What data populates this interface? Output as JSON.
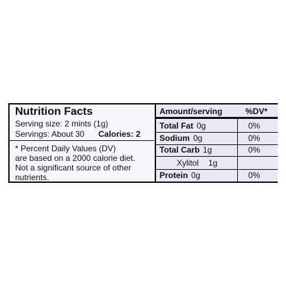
{
  "label": {
    "title": "Nutrition Facts",
    "serving_size": "Serving size: 2 mints (1g)",
    "servings": "Servings: About 30",
    "calories": "Calories: 2",
    "footnote": [
      "* Percent Daily Values (DV)",
      "are based on a 2000 calorie diet.",
      "Not a significant source of other",
      "nutrients."
    ],
    "table": {
      "header": [
        "Amount/serving",
        "%DV*"
      ],
      "rows": [
        {
          "nutrient": "Total Fat",
          "amount": "0g",
          "dv": "0%"
        },
        {
          "nutrient": "Sodium",
          "amount": "0g",
          "dv": "0%"
        },
        {
          "nutrient": "Total Carb",
          "amount": "1g",
          "dv": "0%"
        },
        {
          "nutrient": "Xylitol",
          "amount": "1g",
          "sub": true
        },
        {
          "nutrient": "Protein",
          "amount": "0g",
          "dv": "0%"
        }
      ]
    }
  }
}
